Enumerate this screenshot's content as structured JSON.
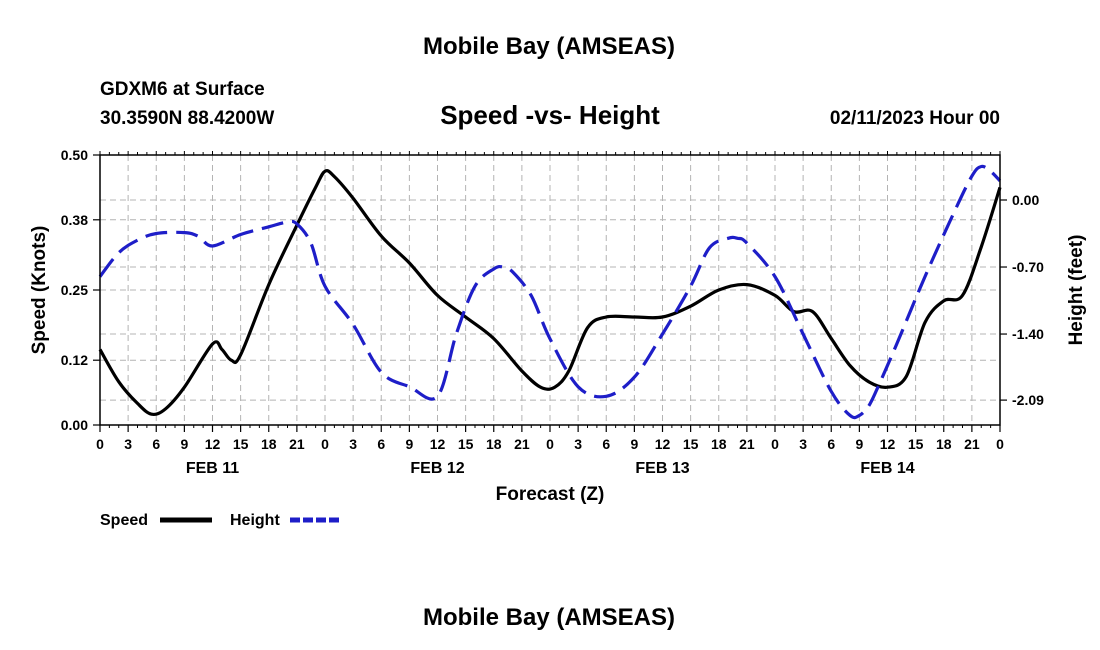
{
  "header": {
    "title": "Mobile Bay (AMSEAS)",
    "station": "GDXM6 at Surface",
    "coords": "30.3590N  88.4200W",
    "subtitle": "Speed -vs- Height",
    "datetime": "02/11/2023 Hour 00"
  },
  "footer": {
    "title": "Mobile Bay (AMSEAS)"
  },
  "chart_data": {
    "type": "line",
    "title": "Speed -vs- Height",
    "xlabel": "Forecast (Z)",
    "ylabel": "Speed (Knots)",
    "y2label": "Height (feet)",
    "xlim": [
      0,
      96
    ],
    "x_tick_values": [
      0,
      3,
      6,
      9,
      12,
      15,
      18,
      21,
      24,
      27,
      30,
      33,
      36,
      39,
      42,
      45,
      48,
      51,
      54,
      57,
      60,
      63,
      66,
      69,
      72,
      75,
      78,
      81,
      84,
      87,
      90,
      93,
      96
    ],
    "x_tick_labels": [
      "0",
      "3",
      "6",
      "9",
      "12",
      "15",
      "18",
      "21",
      "0",
      "3",
      "6",
      "9",
      "12",
      "15",
      "18",
      "21",
      "0",
      "3",
      "6",
      "9",
      "12",
      "15",
      "18",
      "21",
      "0",
      "3",
      "6",
      "9",
      "12",
      "15",
      "18",
      "21",
      "0"
    ],
    "date_labels": [
      {
        "x": 12,
        "label": "FEB 11"
      },
      {
        "x": 36,
        "label": "FEB 12"
      },
      {
        "x": 60,
        "label": "FEB 13"
      },
      {
        "x": 84,
        "label": "FEB 14"
      }
    ],
    "ylim": [
      0,
      0.5
    ],
    "y_ticks": [
      0.0,
      0.12,
      0.25,
      0.38,
      0.5
    ],
    "y_tick_labels": [
      "0.00",
      "0.12",
      "0.25",
      "0.38",
      "0.50"
    ],
    "y2lim": [
      -2.35,
      0.47
    ],
    "y2_ticks": [
      0.0,
      -0.7,
      -1.4,
      -2.09
    ],
    "y2_tick_labels": [
      "0.00",
      "-0.70",
      "-1.40",
      "-2.09"
    ],
    "grid": true,
    "legend_position": "bottom-left",
    "series": [
      {
        "name": "Speed",
        "axis": "left",
        "color": "#000000",
        "style": "solid",
        "x": [
          0,
          2,
          4,
          5.5,
          7,
          9,
          12,
          13,
          14,
          15,
          18,
          21,
          23,
          24,
          25,
          27,
          30,
          33,
          36,
          39,
          42,
          45,
          47,
          48.5,
          50,
          52,
          54,
          57,
          60,
          63,
          66,
          69,
          72,
          74,
          76,
          78,
          80,
          82,
          84,
          86,
          88,
          90,
          92,
          94,
          96
        ],
        "y": [
          0.14,
          0.08,
          0.04,
          0.02,
          0.03,
          0.07,
          0.15,
          0.14,
          0.12,
          0.13,
          0.26,
          0.37,
          0.44,
          0.47,
          0.46,
          0.42,
          0.35,
          0.3,
          0.24,
          0.2,
          0.16,
          0.1,
          0.07,
          0.07,
          0.1,
          0.18,
          0.2,
          0.2,
          0.2,
          0.22,
          0.25,
          0.26,
          0.24,
          0.21,
          0.21,
          0.16,
          0.11,
          0.08,
          0.07,
          0.09,
          0.19,
          0.23,
          0.24,
          0.33,
          0.44
        ]
      },
      {
        "name": "Height",
        "axis": "right",
        "color": "#1e1ec8",
        "style": "dashed",
        "x": [
          0,
          2,
          4,
          6,
          9,
          10.5,
          12,
          15,
          18,
          20,
          21,
          22.5,
          24,
          27,
          30,
          33,
          36,
          38,
          40,
          42,
          43,
          44,
          46,
          48,
          51,
          54,
          57,
          60,
          63,
          65,
          67,
          68,
          69,
          72,
          75,
          78,
          80,
          81,
          82,
          83,
          85,
          88,
          91,
          93,
          94,
          95,
          96
        ],
        "y": [
          -0.8,
          -0.55,
          -0.42,
          -0.35,
          -0.34,
          -0.38,
          -0.48,
          -0.36,
          -0.28,
          -0.23,
          -0.25,
          -0.45,
          -0.9,
          -1.3,
          -1.8,
          -1.95,
          -2.05,
          -1.4,
          -0.9,
          -0.72,
          -0.7,
          -0.75,
          -1.0,
          -1.45,
          -1.95,
          -2.05,
          -1.85,
          -1.4,
          -0.9,
          -0.5,
          -0.4,
          -0.4,
          -0.45,
          -0.8,
          -1.4,
          -2.0,
          -2.25,
          -2.25,
          -2.15,
          -1.95,
          -1.5,
          -0.8,
          -0.15,
          0.25,
          0.35,
          0.3,
          0.2
        ]
      }
    ]
  }
}
